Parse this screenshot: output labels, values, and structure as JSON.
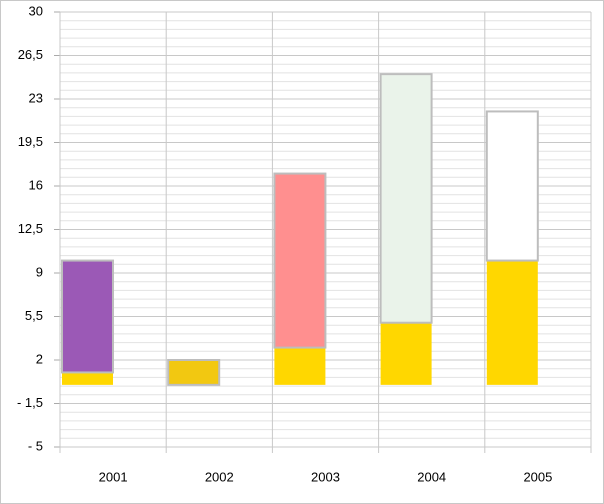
{
  "chart_data": {
    "type": "stacked_bar",
    "categories": [
      "2001",
      "2002",
      "2003",
      "2004",
      "2005"
    ],
    "series": [
      {
        "color": "#ffd700",
        "values": [
          1,
          0,
          3,
          5,
          10
        ]
      },
      {
        "colors": [
          "#9b59b6",
          "#f2c811",
          "#ff8f8f",
          "#eaf3ea",
          "#ffffff"
        ],
        "values": [
          9,
          2,
          14,
          20,
          12
        ]
      }
    ],
    "ylim": [
      -5,
      30
    ],
    "yticks": [
      30,
      {
        "value": 26.5,
        "label": "26,5"
      },
      23,
      {
        "value": 19.5,
        "label": "19,5"
      },
      16,
      {
        "value": 12.5,
        "label": "12,5"
      },
      9,
      {
        "value": 5.5,
        "label": "5,5"
      },
      2,
      {
        "value": -1.5,
        "label": "- 1,5"
      },
      {
        "value": -5,
        "label": "- 5"
      }
    ],
    "grid": true,
    "minor_divisions": 5
  }
}
